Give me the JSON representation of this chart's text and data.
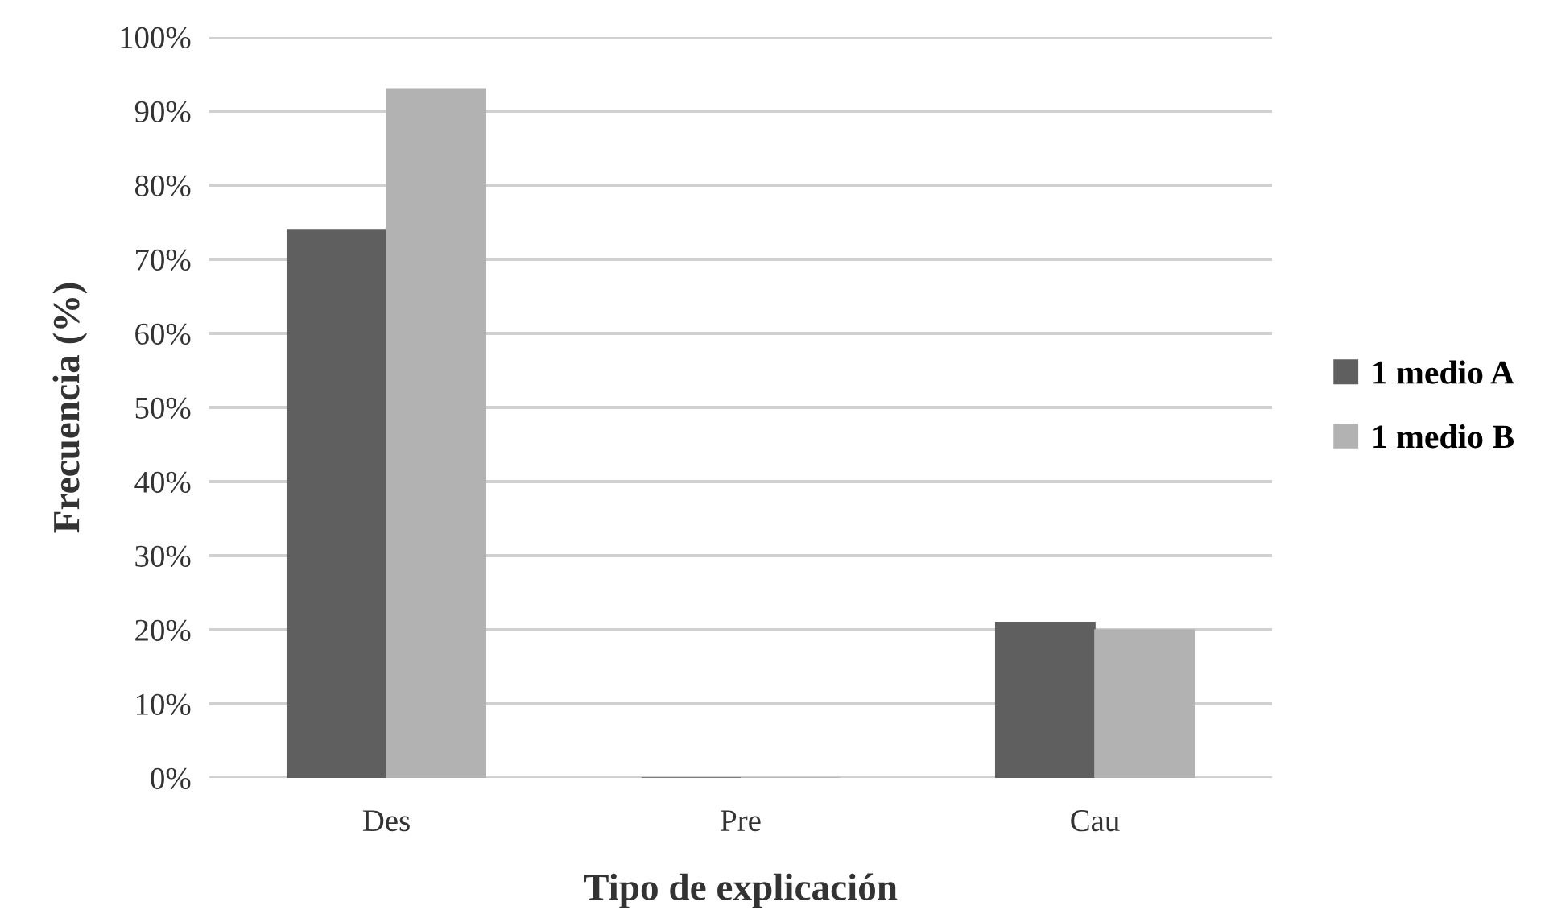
{
  "chart_data": {
    "type": "bar",
    "xlabel": "Tipo de explicación",
    "ylabel": "Frecuencia (%)",
    "categories": [
      "Des",
      "Pre",
      "Cau"
    ],
    "series": [
      {
        "name": "1 medio A",
        "color": "#5f5f5f",
        "values": [
          74,
          0,
          21
        ]
      },
      {
        "name": "1 medio B",
        "color": "#b2b2b2",
        "values": [
          93,
          0,
          20
        ]
      }
    ],
    "ylim": [
      0,
      100
    ],
    "yticks": [
      {
        "value": 0,
        "label": "0%"
      },
      {
        "value": 10,
        "label": "10%"
      },
      {
        "value": 20,
        "label": "20%"
      },
      {
        "value": 30,
        "label": "30%"
      },
      {
        "value": 40,
        "label": "40%"
      },
      {
        "value": 50,
        "label": "50%"
      },
      {
        "value": 60,
        "label": "60%"
      },
      {
        "value": 70,
        "label": "70%"
      },
      {
        "value": 80,
        "label": "80%"
      },
      {
        "value": 90,
        "label": "90%"
      },
      {
        "value": 100,
        "label": "100%"
      }
    ],
    "grid": "y",
    "legend": "right"
  }
}
